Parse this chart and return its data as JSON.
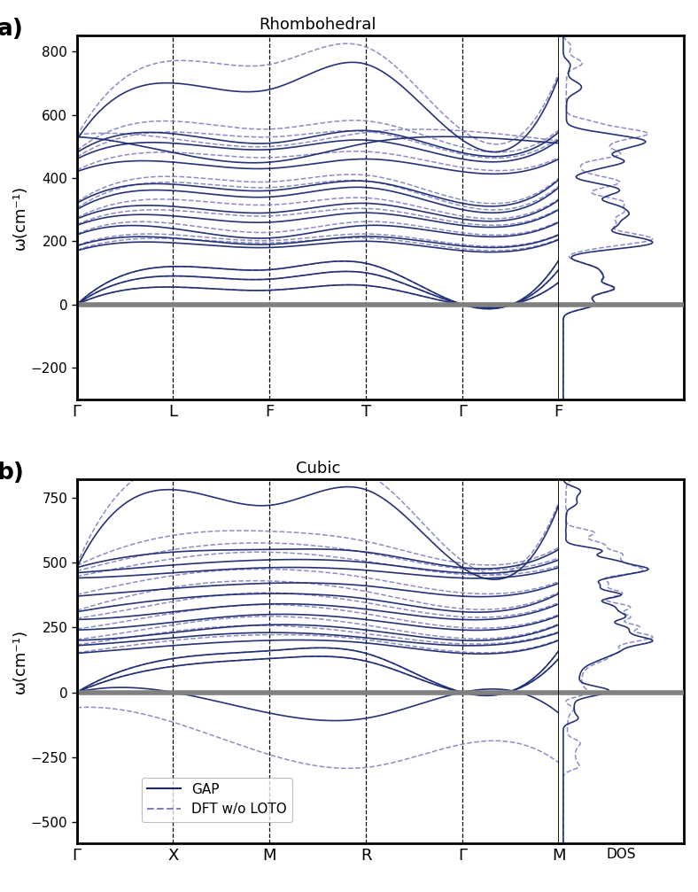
{
  "panel_a": {
    "title": "Rhombohedral",
    "ylim": [
      -300,
      850
    ],
    "yticks": [
      -200,
      0,
      200,
      400,
      600,
      800
    ],
    "kpoints": [
      "Γ",
      "L",
      "F",
      "T",
      "Γ",
      "F"
    ],
    "n_segments": 5,
    "pts_per_seg": 100
  },
  "panel_b": {
    "title": "Cubic",
    "ylim": [
      -580,
      820
    ],
    "yticks": [
      -500,
      -250,
      0,
      250,
      500,
      750
    ],
    "kpoints": [
      "Γ",
      "X",
      "M",
      "R",
      "Γ",
      "M"
    ],
    "n_segments": 5,
    "pts_per_seg": 100
  },
  "colors": {
    "gap": "#1a2870",
    "dft": "#8080c0",
    "zero_line": "#808080"
  },
  "ylabel": "ω(cm⁻¹)",
  "legend_labels": [
    "GAP",
    "DFT w/o LOTO"
  ],
  "figsize": [
    7.88,
    10.07
  ],
  "dpi": 100
}
